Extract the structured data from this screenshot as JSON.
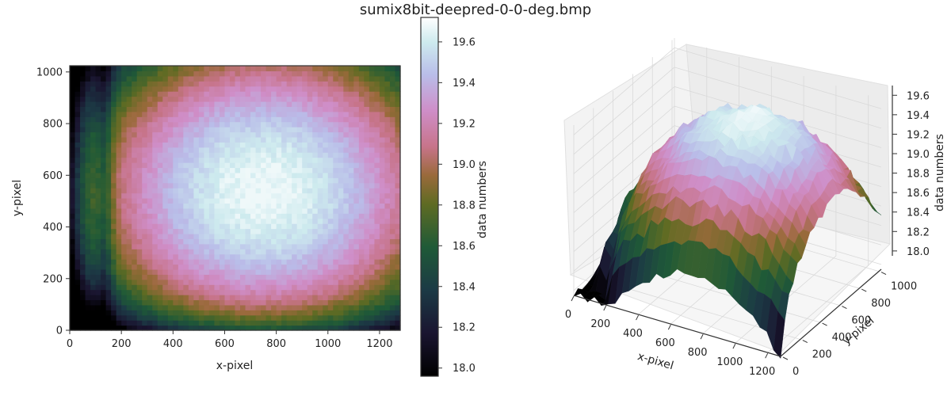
{
  "figure": {
    "title": "sumix8bit-deepred-0-0-deg.bmp"
  },
  "chart_data": [
    {
      "type": "heatmap",
      "title": "",
      "xlabel": "x-pixel",
      "ylabel": "y-pixel",
      "xlim": [
        0,
        1280
      ],
      "ylim": [
        0,
        1024
      ],
      "xticks": [
        "0",
        "200",
        "400",
        "600",
        "800",
        "1000",
        "1200"
      ],
      "yticks": [
        "0",
        "200",
        "400",
        "600",
        "800",
        "1000"
      ],
      "colorbar": {
        "label": "data numbers",
        "range": [
          17.96,
          19.72
        ],
        "ticks": [
          "18.0",
          "18.2",
          "18.4",
          "18.6",
          "18.8",
          "19.0",
          "19.2",
          "19.4",
          "19.6"
        ],
        "colormap": "cubehelix"
      },
      "value_min": 17.96,
      "value_max": 19.68,
      "peak": {
        "x": 750,
        "y": 540
      }
    },
    {
      "type": "surface",
      "xlabel": "x-pixel",
      "ylabel": "y-pixel",
      "zlabel": "data numbers",
      "xticks": [
        "0",
        "200",
        "400",
        "600",
        "800",
        "1000",
        "1200"
      ],
      "yticks": [
        "0",
        "200",
        "400",
        "600",
        "800",
        "1000"
      ],
      "zticks": [
        "18.0",
        "18.2",
        "18.4",
        "18.6",
        "18.8",
        "19.0",
        "19.2",
        "19.4",
        "19.6"
      ],
      "zlim": [
        17.95,
        19.7
      ]
    }
  ]
}
